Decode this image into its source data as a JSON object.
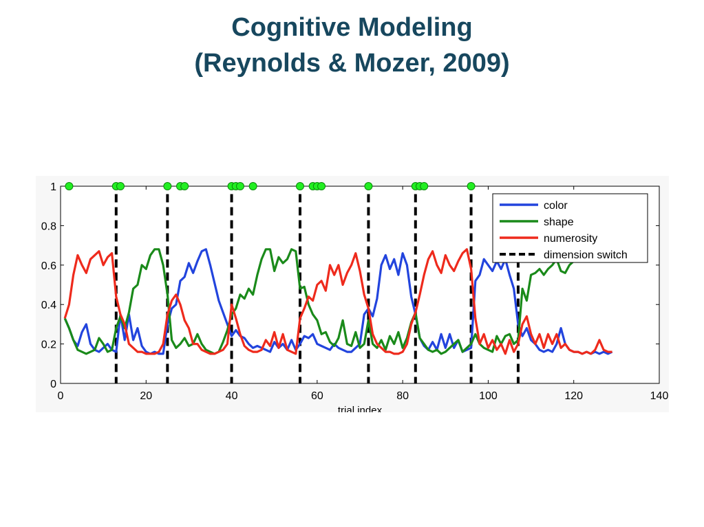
{
  "slide": {
    "title_line1": "Cognitive Modeling",
    "title_line2": "(Reynolds & Mozer, 2009)"
  },
  "chart_data": {
    "type": "line",
    "title": "",
    "xlabel": "trial index",
    "ylabel": "",
    "xlim": [
      0,
      140
    ],
    "ylim": [
      0,
      1
    ],
    "xticks": [
      0,
      20,
      40,
      60,
      80,
      100,
      120,
      140
    ],
    "yticks": [
      0,
      0.2,
      0.4,
      0.6,
      0.8,
      1
    ],
    "ytick_labels": [
      "0",
      "0.2",
      "0.4",
      "0.6",
      "0.8",
      "1"
    ],
    "legend_position": "top-right",
    "series": [
      {
        "name": "color",
        "color": "#2244dd",
        "x": [
          1,
          2,
          3,
          4,
          5,
          6,
          7,
          8,
          9,
          10,
          11,
          12,
          13,
          14,
          15,
          16,
          17,
          18,
          19,
          20,
          21,
          22,
          23,
          24,
          25,
          26,
          27,
          28,
          29,
          30,
          31,
          32,
          33,
          34,
          35,
          36,
          37,
          38,
          39,
          40,
          41,
          42,
          43,
          44,
          45,
          46,
          47,
          48,
          49,
          50,
          51,
          52,
          53,
          54,
          55,
          56,
          57,
          58,
          59,
          60,
          61,
          62,
          63,
          64,
          65,
          66,
          67,
          68,
          69,
          70,
          71,
          72,
          73,
          74,
          75,
          76,
          77,
          78,
          79,
          80,
          81,
          82,
          83,
          84,
          85,
          86,
          87,
          88,
          89,
          90,
          91,
          92,
          93,
          94,
          95,
          96,
          97,
          98,
          99,
          100,
          101,
          102,
          103,
          104,
          105,
          106,
          107,
          108,
          109,
          110,
          111,
          112,
          113,
          114,
          115,
          116,
          117,
          118,
          119,
          120,
          121,
          122,
          123,
          124,
          125,
          126,
          127,
          128,
          129
        ],
        "y": [
          0.33,
          0.28,
          0.22,
          0.19,
          0.26,
          0.3,
          0.2,
          0.17,
          0.16,
          0.18,
          0.2,
          0.17,
          0.16,
          0.35,
          0.22,
          0.35,
          0.22,
          0.28,
          0.19,
          0.16,
          0.15,
          0.16,
          0.15,
          0.15,
          0.3,
          0.38,
          0.4,
          0.52,
          0.54,
          0.61,
          0.56,
          0.62,
          0.67,
          0.68,
          0.6,
          0.51,
          0.42,
          0.36,
          0.3,
          0.24,
          0.27,
          0.24,
          0.23,
          0.2,
          0.18,
          0.19,
          0.18,
          0.17,
          0.16,
          0.21,
          0.18,
          0.2,
          0.17,
          0.22,
          0.17,
          0.2,
          0.24,
          0.23,
          0.25,
          0.2,
          0.19,
          0.18,
          0.17,
          0.2,
          0.18,
          0.17,
          0.16,
          0.16,
          0.18,
          0.2,
          0.35,
          0.38,
          0.34,
          0.43,
          0.6,
          0.65,
          0.58,
          0.63,
          0.55,
          0.66,
          0.6,
          0.44,
          0.35,
          0.23,
          0.19,
          0.17,
          0.21,
          0.17,
          0.25,
          0.18,
          0.25,
          0.18,
          0.22,
          0.16,
          0.17,
          0.18,
          0.52,
          0.55,
          0.63,
          0.6,
          0.57,
          0.62,
          0.58,
          0.63,
          0.55,
          0.48,
          0.3,
          0.24,
          0.28,
          0.22,
          0.2,
          0.17,
          0.16,
          0.17,
          0.16,
          0.2,
          0.28,
          0.2,
          0.17,
          0.16,
          0.16,
          0.15,
          0.16,
          0.15,
          0.16,
          0.15,
          0.16,
          0.15,
          0.16
        ]
      },
      {
        "name": "shape",
        "color": "#1a8a1a",
        "x": [
          1,
          2,
          3,
          4,
          5,
          6,
          7,
          8,
          9,
          10,
          11,
          12,
          13,
          14,
          15,
          16,
          17,
          18,
          19,
          20,
          21,
          22,
          23,
          24,
          25,
          26,
          27,
          28,
          29,
          30,
          31,
          32,
          33,
          34,
          35,
          36,
          37,
          38,
          39,
          40,
          41,
          42,
          43,
          44,
          45,
          46,
          47,
          48,
          49,
          50,
          51,
          52,
          53,
          54,
          55,
          56,
          57,
          58,
          59,
          60,
          61,
          62,
          63,
          64,
          65,
          66,
          67,
          68,
          69,
          70,
          71,
          72,
          73,
          74,
          75,
          76,
          77,
          78,
          79,
          80,
          81,
          82,
          83,
          84,
          85,
          86,
          87,
          88,
          89,
          90,
          91,
          92,
          93,
          94,
          95,
          96,
          97,
          98,
          99,
          100,
          101,
          102,
          103,
          104,
          105,
          106,
          107,
          108,
          109,
          110,
          111,
          112,
          113,
          114,
          115,
          116,
          117,
          118,
          119,
          120
        ],
        "y": [
          0.33,
          0.28,
          0.22,
          0.17,
          0.16,
          0.15,
          0.16,
          0.17,
          0.23,
          0.2,
          0.16,
          0.17,
          0.28,
          0.34,
          0.28,
          0.36,
          0.48,
          0.5,
          0.6,
          0.58,
          0.65,
          0.68,
          0.68,
          0.6,
          0.45,
          0.22,
          0.18,
          0.2,
          0.23,
          0.19,
          0.2,
          0.25,
          0.2,
          0.17,
          0.16,
          0.15,
          0.16,
          0.21,
          0.27,
          0.35,
          0.38,
          0.45,
          0.43,
          0.48,
          0.45,
          0.55,
          0.63,
          0.68,
          0.68,
          0.57,
          0.64,
          0.61,
          0.63,
          0.68,
          0.67,
          0.48,
          0.49,
          0.4,
          0.35,
          0.32,
          0.25,
          0.26,
          0.21,
          0.19,
          0.23,
          0.32,
          0.2,
          0.19,
          0.26,
          0.18,
          0.2,
          0.32,
          0.2,
          0.18,
          0.22,
          0.17,
          0.24,
          0.2,
          0.26,
          0.18,
          0.23,
          0.31,
          0.36,
          0.23,
          0.2,
          0.17,
          0.16,
          0.17,
          0.15,
          0.16,
          0.18,
          0.2,
          0.22,
          0.16,
          0.18,
          0.2,
          0.25,
          0.2,
          0.18,
          0.17,
          0.16,
          0.24,
          0.2,
          0.24,
          0.25,
          0.2,
          0.22,
          0.48,
          0.42,
          0.55,
          0.56,
          0.58,
          0.55,
          0.58,
          0.6,
          0.63,
          0.57,
          0.56,
          0.6,
          0.62
        ]
      },
      {
        "name": "numerosity",
        "color": "#ee2a1c",
        "x": [
          1,
          2,
          3,
          4,
          5,
          6,
          7,
          8,
          9,
          10,
          11,
          12,
          13,
          14,
          15,
          16,
          17,
          18,
          19,
          20,
          21,
          22,
          23,
          24,
          25,
          26,
          27,
          28,
          29,
          30,
          31,
          32,
          33,
          34,
          35,
          36,
          37,
          38,
          39,
          40,
          41,
          42,
          43,
          44,
          45,
          46,
          47,
          48,
          49,
          50,
          51,
          52,
          53,
          54,
          55,
          56,
          57,
          58,
          59,
          60,
          61,
          62,
          63,
          64,
          65,
          66,
          67,
          68,
          69,
          70,
          71,
          72,
          73,
          74,
          75,
          76,
          77,
          78,
          79,
          80,
          81,
          82,
          83,
          84,
          85,
          86,
          87,
          88,
          89,
          90,
          91,
          92,
          93,
          94,
          95,
          96,
          97,
          98,
          99,
          100,
          101,
          102,
          103,
          104,
          105,
          106,
          107,
          108,
          109,
          110,
          111,
          112,
          113,
          114,
          115,
          116,
          117,
          118,
          119,
          120,
          121,
          122,
          123,
          124,
          125,
          126,
          127,
          128,
          129
        ],
        "y": [
          0.33,
          0.4,
          0.55,
          0.65,
          0.6,
          0.56,
          0.63,
          0.65,
          0.67,
          0.6,
          0.64,
          0.66,
          0.44,
          0.35,
          0.3,
          0.2,
          0.18,
          0.16,
          0.16,
          0.15,
          0.15,
          0.15,
          0.16,
          0.2,
          0.35,
          0.42,
          0.45,
          0.4,
          0.32,
          0.28,
          0.2,
          0.2,
          0.17,
          0.16,
          0.15,
          0.15,
          0.16,
          0.17,
          0.2,
          0.4,
          0.33,
          0.25,
          0.19,
          0.17,
          0.16,
          0.16,
          0.17,
          0.22,
          0.19,
          0.26,
          0.18,
          0.25,
          0.17,
          0.16,
          0.15,
          0.33,
          0.38,
          0.44,
          0.42,
          0.5,
          0.52,
          0.47,
          0.6,
          0.55,
          0.6,
          0.5,
          0.56,
          0.6,
          0.66,
          0.57,
          0.45,
          0.38,
          0.25,
          0.2,
          0.18,
          0.16,
          0.16,
          0.15,
          0.15,
          0.16,
          0.2,
          0.3,
          0.36,
          0.45,
          0.55,
          0.63,
          0.67,
          0.6,
          0.56,
          0.65,
          0.6,
          0.57,
          0.62,
          0.66,
          0.68,
          0.58,
          0.33,
          0.2,
          0.25,
          0.18,
          0.22,
          0.17,
          0.2,
          0.15,
          0.22,
          0.16,
          0.2,
          0.3,
          0.34,
          0.25,
          0.2,
          0.25,
          0.18,
          0.25,
          0.2,
          0.25,
          0.18,
          0.2,
          0.17,
          0.16,
          0.16,
          0.15,
          0.16,
          0.15,
          0.17,
          0.22,
          0.17,
          0.16,
          0.16
        ]
      }
    ],
    "dimension_switch": {
      "name": "dimension switch",
      "color": "#000000",
      "x": [
        13,
        25,
        40,
        56,
        72,
        83,
        96,
        107
      ]
    },
    "markers": {
      "color": "#22ee22",
      "y": 1,
      "x": [
        2,
        13,
        14,
        25,
        28,
        29,
        40,
        41,
        42,
        45,
        56,
        59,
        60,
        61,
        72,
        83,
        84,
        85,
        96
      ]
    }
  }
}
